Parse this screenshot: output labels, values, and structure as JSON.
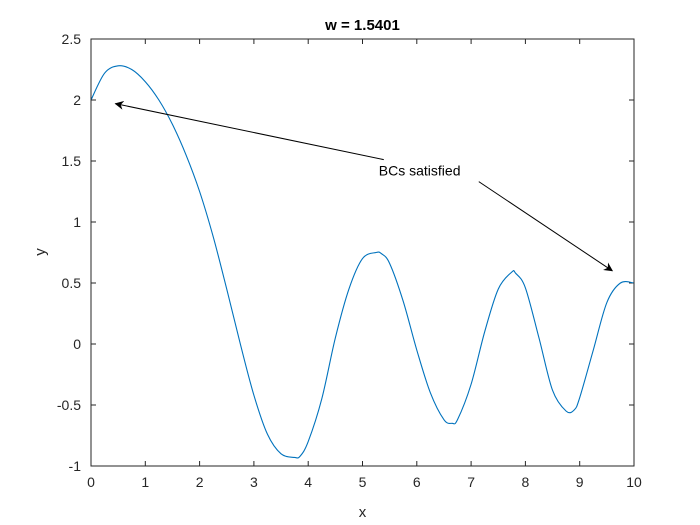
{
  "chart_data": {
    "type": "line",
    "title": "w = 1.5401",
    "xlabel": "x",
    "ylabel": "y",
    "xlim": [
      0,
      10
    ],
    "ylim": [
      -1,
      2.5
    ],
    "xticks": [
      "0",
      "1",
      "2",
      "3",
      "4",
      "5",
      "6",
      "7",
      "8",
      "9",
      "10"
    ],
    "yticks": [
      "-1",
      "-0.5",
      "0",
      "0.5",
      "1",
      "1.5",
      "2",
      "2.5"
    ],
    "grid": false,
    "line_color": "#0072BD",
    "series": [
      {
        "x": [
          0,
          0.25,
          0.5,
          0.75,
          1,
          1.25,
          1.5,
          1.75,
          2,
          2.25,
          2.5,
          2.75,
          3,
          3.25,
          3.5,
          3.75,
          3.85,
          4,
          4.25,
          4.5,
          4.75,
          5,
          5.25,
          5.35,
          5.5,
          5.75,
          6,
          6.25,
          6.5,
          6.65,
          6.75,
          7,
          7.25,
          7.5,
          7.75,
          7.82,
          8,
          8.25,
          8.5,
          8.75,
          8.9,
          9,
          9.25,
          9.5,
          9.75,
          10
        ],
        "y": [
          2.0,
          2.22,
          2.28,
          2.25,
          2.15,
          2.0,
          1.8,
          1.55,
          1.25,
          0.88,
          0.45,
          0.0,
          -0.42,
          -0.74,
          -0.9,
          -0.93,
          -0.92,
          -0.8,
          -0.45,
          0.05,
          0.45,
          0.7,
          0.75,
          0.74,
          0.66,
          0.35,
          -0.05,
          -0.4,
          -0.62,
          -0.65,
          -0.62,
          -0.33,
          0.1,
          0.45,
          0.59,
          0.58,
          0.46,
          0.05,
          -0.38,
          -0.55,
          -0.54,
          -0.44,
          -0.05,
          0.34,
          0.5,
          0.5
        ]
      }
    ],
    "annotations": [
      {
        "text": "BCs satisfied",
        "x": 5.3,
        "y": 1.38,
        "arrows_to": [
          [
            0.45,
            1.97
          ],
          [
            9.6,
            0.6
          ]
        ]
      }
    ]
  }
}
